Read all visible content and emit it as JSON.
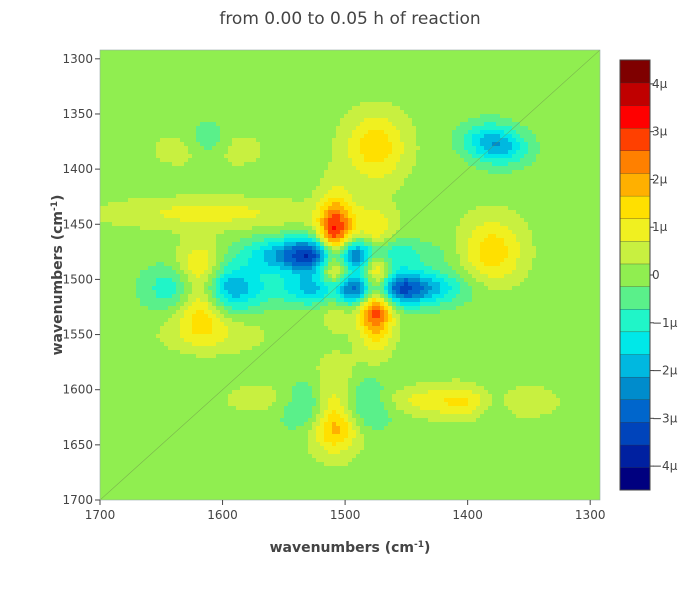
{
  "chart_data": {
    "type": "heatmap",
    "subtype": "contour",
    "title": "from 0.00 to 0.05 h of reaction",
    "xlabel": {
      "prefix": "wavenumbers (cm",
      "sup": "-1",
      "suffix": ")"
    },
    "ylabel": {
      "prefix": "wavenumbers (cm",
      "sup": "-1",
      "suffix": ")"
    },
    "x_range": [
      1700,
      1292
    ],
    "y_range": [
      1292,
      1700
    ],
    "x_ticks": [
      1700,
      1600,
      1500,
      1400,
      1300
    ],
    "x_tick_labels": [
      "1700",
      "1600",
      "1500",
      "1400",
      "1300"
    ],
    "y_ticks": [
      1300,
      1350,
      1400,
      1450,
      1500,
      1550,
      1600,
      1650,
      1700
    ],
    "y_tick_labels": [
      "1300",
      "1350",
      "1400",
      "1450",
      "1500",
      "1550",
      "1600",
      "1650",
      "1700"
    ],
    "colorscale": [
      "#00007f",
      "#0020a0",
      "#0044bb",
      "#0066cc",
      "#008ccc",
      "#00b8e0",
      "#00e8e8",
      "#20f5c8",
      "#5af08a",
      "#90ee50",
      "#c8f040",
      "#f0f020",
      "#ffe000",
      "#ffb000",
      "#ff8000",
      "#ff4000",
      "#ff0000",
      "#c00000",
      "#7f0000"
    ],
    "z_range": [
      -4.5,
      4.5
    ],
    "colorbar": {
      "ticks": [
        4,
        3,
        2,
        1,
        0,
        -1,
        -2,
        -3,
        -4
      ],
      "tick_labels": [
        "4μ",
        "3μ",
        "2μ",
        "1μ",
        "0",
        "−1μ",
        "−2μ",
        "−3μ",
        "−4μ"
      ]
    },
    "features": [
      {
        "x": 1508,
        "y": 1475,
        "amp": 4.3,
        "sx": 10,
        "sy": 30
      },
      {
        "x": 1508,
        "y": 1618,
        "amp": 3.7,
        "sx": 14,
        "sy": 22
      },
      {
        "x": 1478,
        "y": 1508,
        "amp": -4.5,
        "sx": 40,
        "sy": 11
      },
      {
        "x": 1612,
        "y": 1508,
        "amp": -3.4,
        "sx": 26,
        "sy": 15
      },
      {
        "x": 1612,
        "y": 1378,
        "amp": -1.3,
        "sx": 13,
        "sy": 13
      },
      {
        "x": 1372,
        "y": 1383,
        "amp": -1.3,
        "sx": 16,
        "sy": 11
      },
      {
        "x": 1380,
        "y": 1475,
        "amp": 1.5,
        "sx": 18,
        "sy": 22
      },
      {
        "x": 1382,
        "y": 1612,
        "amp": 1.0,
        "sx": 26,
        "sy": 12
      },
      {
        "x": 1440,
        "y": 1610,
        "amp": 0.9,
        "sx": 60,
        "sy": 10
      },
      {
        "x": 1450,
        "y": 1480,
        "amp": 0.5,
        "sx": 15,
        "sy": 15
      },
      {
        "x": 1550,
        "y": 1608,
        "amp": 0.7,
        "sx": 30,
        "sy": 12
      }
    ]
  }
}
